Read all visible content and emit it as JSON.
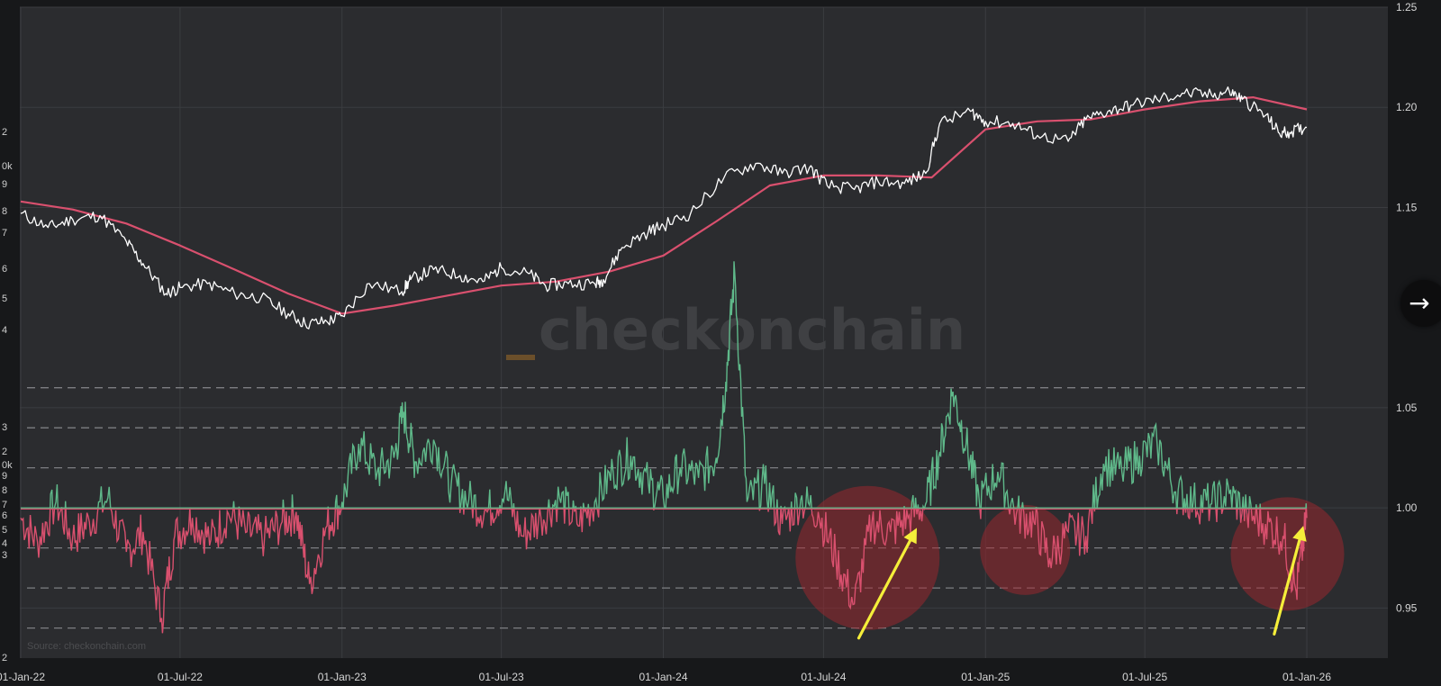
{
  "chart_data": {
    "type": "line",
    "title": "",
    "xlabel": "",
    "ylabel": "",
    "x_ticks": [
      "01-Jan-22",
      "01-Jul-22",
      "01-Jan-23",
      "01-Jul-23",
      "01-Jan-24",
      "01-Jul-24",
      "01-Jan-25",
      "01-Jul-25",
      "01-Jan-26"
    ],
    "x_range": [
      "2022-01-01",
      "2026-01-01"
    ],
    "right_axis": {
      "ticks": [
        "0.95",
        "1.00",
        "1.05",
        "1.15",
        "1.20",
        "1.25"
      ],
      "range": [
        0.925,
        1.25
      ],
      "reference_line": 1.0
    },
    "left_axis_labels": [
      "2",
      "3",
      "4",
      "5",
      "6",
      "7",
      "8",
      "9",
      "0k",
      "2",
      "3",
      "4",
      "5",
      "6",
      "7",
      "8",
      "9",
      "0k",
      "2"
    ],
    "dashed_levels": [
      0.94,
      0.96,
      0.98,
      1.02,
      1.04,
      1.06
    ],
    "price_series": {
      "color": "#ffffff",
      "x": [
        "2022-01-01",
        "2022-02-01",
        "2022-03-01",
        "2022-04-01",
        "2022-05-01",
        "2022-05-20",
        "2022-06-15",
        "2022-07-01",
        "2022-08-01",
        "2022-09-01",
        "2022-10-01",
        "2022-11-01",
        "2022-11-20",
        "2022-12-15",
        "2023-01-01",
        "2023-02-01",
        "2023-03-10",
        "2023-03-20",
        "2023-04-15",
        "2023-05-15",
        "2023-06-10",
        "2023-07-01",
        "2023-08-01",
        "2023-08-20",
        "2023-09-15",
        "2023-10-15",
        "2023-10-25",
        "2023-11-15",
        "2023-12-15",
        "2024-01-01",
        "2024-02-01",
        "2024-03-10",
        "2024-04-15",
        "2024-05-15",
        "2024-06-15",
        "2024-07-05",
        "2024-08-05",
        "2024-09-01",
        "2024-10-01",
        "2024-10-25",
        "2024-11-10",
        "2024-12-15",
        "2025-01-01",
        "2025-02-01",
        "2025-03-01",
        "2025-04-05",
        "2025-04-25",
        "2025-05-20",
        "2025-06-15",
        "2025-07-15",
        "2025-08-15",
        "2025-09-15",
        "2025-10-05",
        "2025-10-20",
        "2025-11-15",
        "2025-12-01",
        "2025-12-15",
        "2026-01-01"
      ],
      "y": [
        1.147,
        1.14,
        1.144,
        1.146,
        1.133,
        1.122,
        1.107,
        1.11,
        1.112,
        1.107,
        1.105,
        1.097,
        1.092,
        1.093,
        1.096,
        1.112,
        1.108,
        1.114,
        1.119,
        1.116,
        1.113,
        1.12,
        1.117,
        1.111,
        1.112,
        1.112,
        1.114,
        1.13,
        1.138,
        1.141,
        1.147,
        1.165,
        1.172,
        1.167,
        1.17,
        1.161,
        1.159,
        1.163,
        1.162,
        1.167,
        1.192,
        1.198,
        1.193,
        1.192,
        1.186,
        1.183,
        1.194,
        1.198,
        1.201,
        1.204,
        1.207,
        1.206,
        1.208,
        1.204,
        1.196,
        1.187,
        1.188,
        1.19
      ]
    },
    "moving_average": {
      "color": "#d9506e",
      "x": [
        "2022-01-01",
        "2022-03-01",
        "2022-05-01",
        "2022-07-01",
        "2022-09-01",
        "2022-11-01",
        "2023-01-01",
        "2023-03-01",
        "2023-05-01",
        "2023-07-01",
        "2023-09-01",
        "2023-11-01",
        "2024-01-01",
        "2024-03-01",
        "2024-05-01",
        "2024-07-01",
        "2024-09-01",
        "2024-11-01",
        "2025-01-01",
        "2025-03-01",
        "2025-05-01",
        "2025-07-01",
        "2025-09-01",
        "2025-11-01",
        "2026-01-01"
      ],
      "y": [
        1.153,
        1.149,
        1.142,
        1.131,
        1.119,
        1.107,
        1.097,
        1.101,
        1.106,
        1.111,
        1.113,
        1.118,
        1.126,
        1.143,
        1.161,
        1.166,
        1.166,
        1.165,
        1.189,
        1.193,
        1.194,
        1.199,
        1.203,
        1.205,
        1.199
      ]
    },
    "ratio_series": {
      "name": "",
      "above_color": "#5fb98a",
      "below_color": "#d9506e",
      "baseline": 1.0,
      "x": [
        "2022-01-01",
        "2022-01-20",
        "2022-02-10",
        "2022-03-01",
        "2022-03-20",
        "2022-04-10",
        "2022-05-01",
        "2022-05-20",
        "2022-06-10",
        "2022-06-25",
        "2022-07-15",
        "2022-08-05",
        "2022-08-25",
        "2022-09-15",
        "2022-10-05",
        "2022-10-25",
        "2022-11-10",
        "2022-11-25",
        "2022-12-15",
        "2023-01-01",
        "2023-01-20",
        "2023-02-10",
        "2023-03-01",
        "2023-03-12",
        "2023-03-25",
        "2023-04-15",
        "2023-05-05",
        "2023-05-25",
        "2023-06-15",
        "2023-07-05",
        "2023-07-25",
        "2023-08-15",
        "2023-09-05",
        "2023-09-25",
        "2023-10-15",
        "2023-11-05",
        "2023-11-25",
        "2023-12-15",
        "2024-01-01",
        "2024-01-20",
        "2024-02-10",
        "2024-03-01",
        "2024-03-12",
        "2024-03-22",
        "2024-04-05",
        "2024-04-25",
        "2024-05-15",
        "2024-06-05",
        "2024-06-25",
        "2024-07-15",
        "2024-08-05",
        "2024-08-25",
        "2024-09-15",
        "2024-10-05",
        "2024-10-25",
        "2024-11-10",
        "2024-11-25",
        "2024-12-10",
        "2024-12-25",
        "2025-01-15",
        "2025-02-05",
        "2025-02-25",
        "2025-03-15",
        "2025-04-05",
        "2025-04-25",
        "2025-05-15",
        "2025-06-05",
        "2025-06-25",
        "2025-07-15",
        "2025-08-05",
        "2025-08-25",
        "2025-09-15",
        "2025-10-05",
        "2025-10-25",
        "2025-11-15",
        "2025-12-05",
        "2025-12-20",
        "2026-01-01"
      ],
      "y": [
        0.995,
        0.983,
        1.003,
        0.985,
        0.993,
        1.005,
        0.978,
        0.988,
        0.945,
        0.986,
        0.995,
        0.984,
        0.997,
        0.988,
        0.985,
        0.993,
        0.998,
        0.962,
        0.991,
        1.003,
        1.032,
        1.018,
        1.025,
        1.048,
        1.023,
        1.034,
        1.012,
        1.004,
        0.998,
        1.008,
        0.986,
        0.995,
        1.005,
        0.992,
        1.003,
        1.018,
        1.026,
        1.012,
        1.005,
        1.02,
        1.015,
        1.025,
        1.063,
        1.118,
        1.003,
        1.012,
        0.992,
        1.004,
        0.998,
        0.975,
        0.952,
        0.993,
        0.988,
        0.995,
        1.002,
        1.028,
        1.058,
        1.032,
        1.003,
        1.018,
        0.997,
        0.993,
        0.975,
        0.988,
        0.986,
        1.022,
        1.018,
        1.026,
        1.032,
        1.008,
        1.003,
        1.002,
        1.007,
        0.997,
        0.992,
        0.986,
        0.958,
        0.995
      ]
    },
    "annotations": [
      {
        "type": "circle",
        "center": [
          "2024-08-20",
          0.975
        ],
        "color": "#a8262e"
      },
      {
        "type": "circle",
        "center": [
          "2025-02-15",
          0.979
        ],
        "color": "#a8262e"
      },
      {
        "type": "circle",
        "center": [
          "2025-12-10",
          0.977
        ],
        "color": "#a8262e"
      },
      {
        "type": "arrow",
        "from": [
          "2024-08-10",
          0.935
        ],
        "to": [
          "2024-10-15",
          0.99
        ],
        "color": "#f5ee3a"
      },
      {
        "type": "arrow",
        "from": [
          "2025-11-25",
          0.937
        ],
        "to": [
          "2025-12-28",
          0.991
        ],
        "color": "#f5ee3a"
      }
    ],
    "grid": true,
    "legend": "none",
    "watermark": "checkonchain",
    "source": "Source: checkonchain.com"
  }
}
